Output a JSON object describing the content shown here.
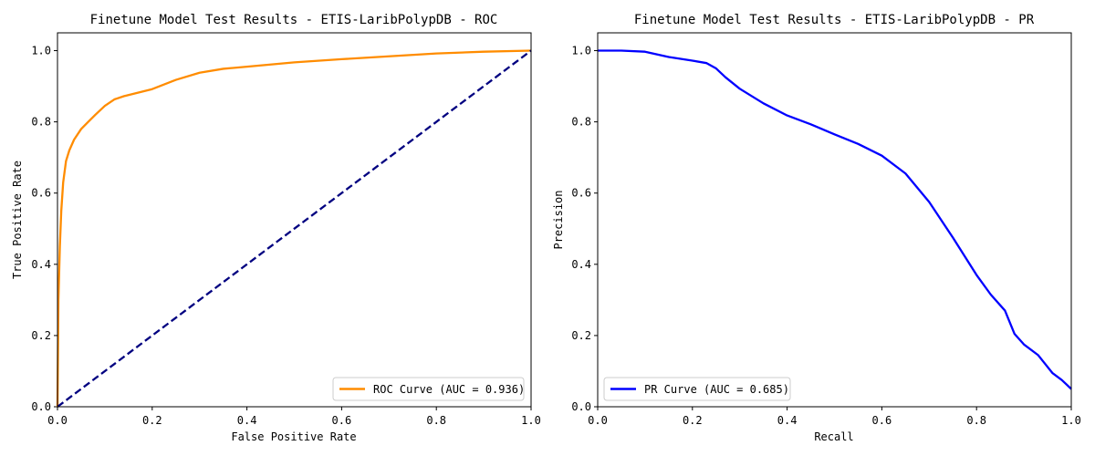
{
  "chart_data": [
    {
      "type": "line",
      "title": "Finetune Model Test Results - ETIS-LaribPolypDB - ROC",
      "xlabel": "False Positive Rate",
      "ylabel": "True Positive Rate",
      "xlim": [
        0,
        1
      ],
      "ylim": [
        0,
        1.05
      ],
      "xticks": [
        "0.0",
        "0.2",
        "0.4",
        "0.6",
        "0.8",
        "1.0"
      ],
      "yticks": [
        "0.0",
        "0.2",
        "0.4",
        "0.6",
        "0.8",
        "1.0"
      ],
      "grid": false,
      "legend_position": "lower-right",
      "series": [
        {
          "name": "ROC Curve (AUC = 0.936)",
          "color": "#ff8c00",
          "style": "solid",
          "x": [
            0,
            0.002,
            0.005,
            0.008,
            0.012,
            0.018,
            0.025,
            0.035,
            0.05,
            0.065,
            0.08,
            0.1,
            0.12,
            0.14,
            0.17,
            0.2,
            0.25,
            0.3,
            0.35,
            0.4,
            0.5,
            0.6,
            0.7,
            0.8,
            0.9,
            1.0
          ],
          "y": [
            0,
            0.3,
            0.45,
            0.55,
            0.63,
            0.69,
            0.72,
            0.75,
            0.78,
            0.8,
            0.82,
            0.845,
            0.863,
            0.872,
            0.882,
            0.892,
            0.918,
            0.938,
            0.949,
            0.955,
            0.967,
            0.976,
            0.984,
            0.992,
            0.997,
            1.0
          ]
        },
        {
          "name": "",
          "color": "#000080",
          "style": "dashed",
          "x": [
            0,
            1
          ],
          "y": [
            0,
            1
          ]
        }
      ]
    },
    {
      "type": "line",
      "title": "Finetune Model Test Results - ETIS-LaribPolypDB - PR",
      "xlabel": "Recall",
      "ylabel": "Precision",
      "xlim": [
        0,
        1
      ],
      "ylim": [
        0,
        1.05
      ],
      "xticks": [
        "0.0",
        "0.2",
        "0.4",
        "0.6",
        "0.8",
        "1.0"
      ],
      "yticks": [
        "0.0",
        "0.2",
        "0.4",
        "0.6",
        "0.8",
        "1.0"
      ],
      "grid": false,
      "legend_position": "lower-left",
      "series": [
        {
          "name": "PR Curve (AUC = 0.685)",
          "color": "#0000ff",
          "style": "solid",
          "x": [
            0,
            0.05,
            0.1,
            0.15,
            0.2,
            0.23,
            0.25,
            0.27,
            0.3,
            0.35,
            0.4,
            0.45,
            0.5,
            0.55,
            0.6,
            0.65,
            0.7,
            0.75,
            0.8,
            0.83,
            0.86,
            0.88,
            0.9,
            0.93,
            0.96,
            0.98,
            1.0
          ],
          "y": [
            1.0,
            1.0,
            0.997,
            0.982,
            0.972,
            0.965,
            0.95,
            0.925,
            0.893,
            0.852,
            0.818,
            0.793,
            0.765,
            0.738,
            0.705,
            0.655,
            0.575,
            0.475,
            0.37,
            0.315,
            0.27,
            0.205,
            0.175,
            0.145,
            0.095,
            0.075,
            0.05
          ]
        }
      ]
    }
  ]
}
